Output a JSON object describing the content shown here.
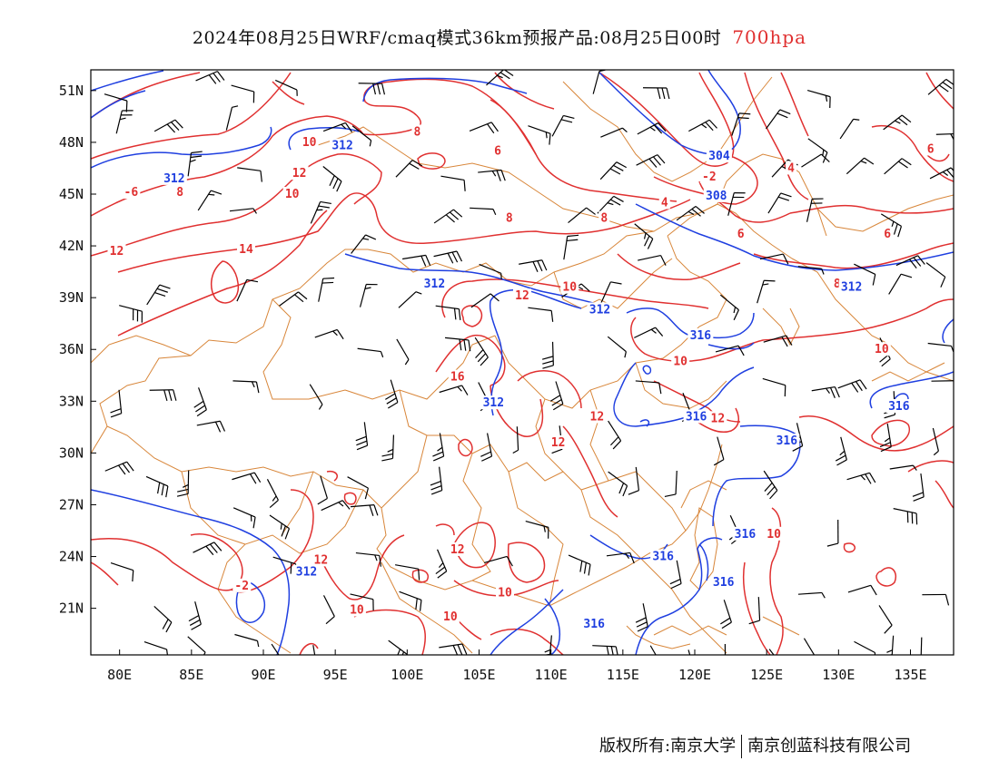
{
  "title": {
    "main": "2024年08月25日WRF/cmaq模式36km预报产品:08月25日00时",
    "level": "700hpa",
    "level_color": "#e03030"
  },
  "map": {
    "lon_range": [
      78,
      138
    ],
    "lat_range": [
      18.3,
      52.2
    ],
    "lat_labels": [
      "51N",
      "48N",
      "45N",
      "42N",
      "39N",
      "36N",
      "33N",
      "30N",
      "27N",
      "24N",
      "21N"
    ],
    "lat_values": [
      51,
      48,
      45,
      42,
      39,
      36,
      33,
      30,
      27,
      24,
      21
    ],
    "lon_labels": [
      "80E",
      "85E",
      "90E",
      "95E",
      "100E",
      "105E",
      "110E",
      "115E",
      "120E",
      "125E",
      "130E",
      "135E"
    ],
    "lon_values": [
      80,
      85,
      90,
      95,
      100,
      105,
      110,
      115,
      120,
      125,
      130,
      135
    ],
    "colors": {
      "temperature": "#e03030",
      "geopotential": "#1f3fe0",
      "boundary": "#d8863a",
      "wind": "#000000"
    },
    "temperature_labels": [
      {
        "text": "10",
        "lon": 93.2,
        "lat": 48.0
      },
      {
        "text": "8",
        "lon": 100.7,
        "lat": 48.6
      },
      {
        "text": "6",
        "lon": 106.3,
        "lat": 47.5
      },
      {
        "text": "12",
        "lon": 92.5,
        "lat": 46.2
      },
      {
        "text": "10",
        "lon": 92.0,
        "lat": 45.0
      },
      {
        "text": "-6",
        "lon": 80.8,
        "lat": 45.1
      },
      {
        "text": "8",
        "lon": 84.2,
        "lat": 45.1
      },
      {
        "text": "12",
        "lon": 79.8,
        "lat": 41.7
      },
      {
        "text": "14",
        "lon": 88.8,
        "lat": 41.8
      },
      {
        "text": "8",
        "lon": 107.1,
        "lat": 43.6
      },
      {
        "text": "8",
        "lon": 113.7,
        "lat": 43.6
      },
      {
        "text": "-2",
        "lon": 121.0,
        "lat": 46.0
      },
      {
        "text": "4",
        "lon": 117.9,
        "lat": 44.5
      },
      {
        "text": "4",
        "lon": 126.7,
        "lat": 46.5
      },
      {
        "text": "6",
        "lon": 123.2,
        "lat": 42.7
      },
      {
        "text": "6",
        "lon": 133.4,
        "lat": 42.7
      },
      {
        "text": "8",
        "lon": 129.9,
        "lat": 39.8
      },
      {
        "text": "6",
        "lon": 136.4,
        "lat": 47.6
      },
      {
        "text": "12",
        "lon": 108.0,
        "lat": 39.1
      },
      {
        "text": "10",
        "lon": 111.3,
        "lat": 39.6
      },
      {
        "text": "10",
        "lon": 119.0,
        "lat": 35.3
      },
      {
        "text": "10",
        "lon": 133.0,
        "lat": 36.0
      },
      {
        "text": "16",
        "lon": 103.5,
        "lat": 34.4
      },
      {
        "text": "12",
        "lon": 113.2,
        "lat": 32.1
      },
      {
        "text": "12",
        "lon": 110.5,
        "lat": 30.6
      },
      {
        "text": "12",
        "lon": 121.6,
        "lat": 32.0
      },
      {
        "text": "12",
        "lon": 94.0,
        "lat": 23.8
      },
      {
        "text": "-2",
        "lon": 88.5,
        "lat": 22.3
      },
      {
        "text": "10",
        "lon": 96.5,
        "lat": 20.9
      },
      {
        "text": "10",
        "lon": 103.0,
        "lat": 20.5
      },
      {
        "text": "10",
        "lon": 106.8,
        "lat": 21.9
      },
      {
        "text": "12",
        "lon": 103.5,
        "lat": 24.4
      },
      {
        "text": "10",
        "lon": 125.5,
        "lat": 25.3
      }
    ],
    "height_labels": [
      {
        "text": "312",
        "lon": 95.5,
        "lat": 47.8
      },
      {
        "text": "312",
        "lon": 83.8,
        "lat": 45.9
      },
      {
        "text": "304",
        "lon": 121.7,
        "lat": 47.2
      },
      {
        "text": "308",
        "lon": 121.5,
        "lat": 44.9
      },
      {
        "text": "312",
        "lon": 101.9,
        "lat": 39.8
      },
      {
        "text": "312",
        "lon": 113.4,
        "lat": 38.3
      },
      {
        "text": "312",
        "lon": 130.9,
        "lat": 39.6
      },
      {
        "text": "316",
        "lon": 120.4,
        "lat": 36.8
      },
      {
        "text": "312",
        "lon": 106.0,
        "lat": 32.9
      },
      {
        "text": "316",
        "lon": 120.1,
        "lat": 32.1
      },
      {
        "text": "316",
        "lon": 126.4,
        "lat": 30.7
      },
      {
        "text": "316",
        "lon": 134.2,
        "lat": 32.7
      },
      {
        "text": "316",
        "lon": 117.8,
        "lat": 24.0
      },
      {
        "text": "316",
        "lon": 123.5,
        "lat": 25.3
      },
      {
        "text": "316",
        "lon": 122.0,
        "lat": 22.5
      },
      {
        "text": "316",
        "lon": 113.0,
        "lat": 20.1
      },
      {
        "text": "312",
        "lon": 93.0,
        "lat": 23.1
      }
    ]
  },
  "footer": {
    "copyright": "版权所有:南京大学",
    "company": "南京创蓝科技有限公司"
  }
}
